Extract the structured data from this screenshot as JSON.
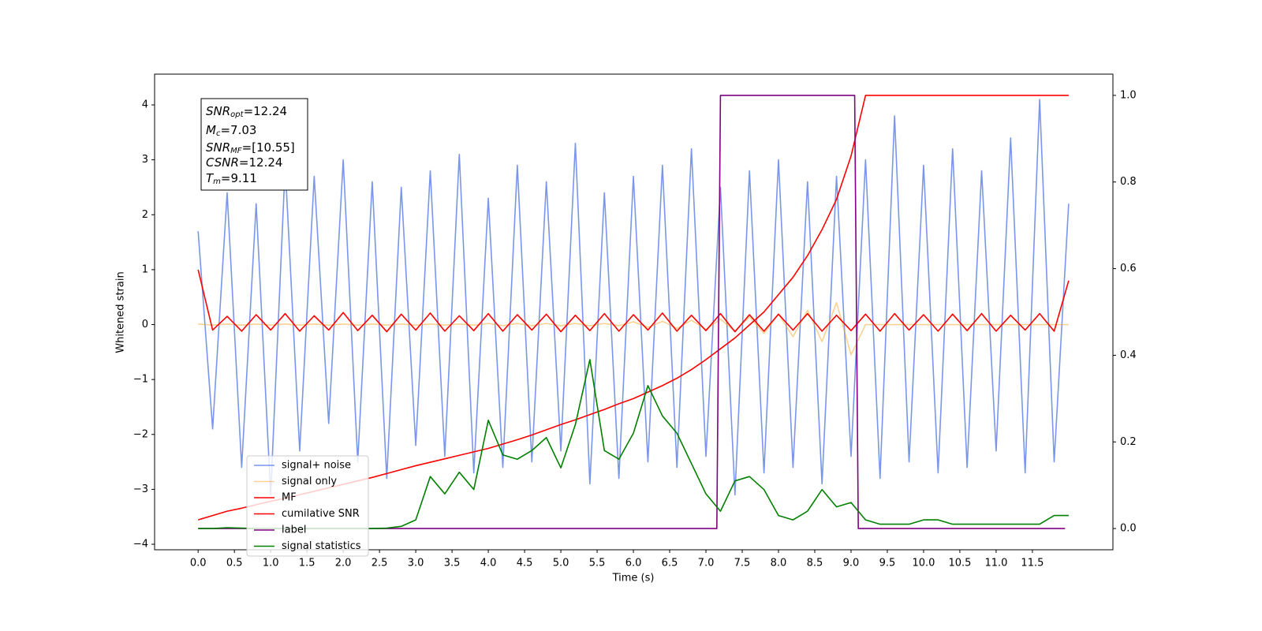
{
  "chart_data": {
    "type": "line",
    "xlabel": "Time (s)",
    "ylabel": "Whitened strain",
    "xlim": [
      -0.6,
      12.61
    ],
    "ylim": [
      -4.1,
      4.56
    ],
    "y2lim": [
      -0.049,
      1.049
    ],
    "xticks": [
      {
        "value": 0,
        "label": "0.0"
      },
      {
        "value": 0.5,
        "label": "0.5"
      },
      {
        "value": 1,
        "label": "1.0"
      },
      {
        "value": 1.5,
        "label": "1.5"
      },
      {
        "value": 2,
        "label": "2.0"
      },
      {
        "value": 2.5,
        "label": "2.5"
      },
      {
        "value": 3,
        "label": "3.0"
      },
      {
        "value": 3.5,
        "label": "3.5"
      },
      {
        "value": 4,
        "label": "4.0"
      },
      {
        "value": 4.5,
        "label": "4.5"
      },
      {
        "value": 5,
        "label": "5.0"
      },
      {
        "value": 5.5,
        "label": "5.5"
      },
      {
        "value": 6,
        "label": "6.0"
      },
      {
        "value": 6.5,
        "label": "6.5"
      },
      {
        "value": 7,
        "label": "7.0"
      },
      {
        "value": 7.5,
        "label": "7.5"
      },
      {
        "value": 8,
        "label": "8.0"
      },
      {
        "value": 8.5,
        "label": "8.5"
      },
      {
        "value": 9,
        "label": "9.0"
      },
      {
        "value": 9.5,
        "label": "9.5"
      },
      {
        "value": 10,
        "label": "10.0"
      },
      {
        "value": 10.5,
        "label": "10.5"
      },
      {
        "value": 11,
        "label": "11.0"
      },
      {
        "value": 11.5,
        "label": "11.5"
      }
    ],
    "yticks": [
      {
        "value": -4,
        "label": "−4"
      },
      {
        "value": -3,
        "label": "−3"
      },
      {
        "value": -2,
        "label": "−2"
      },
      {
        "value": -1,
        "label": "−1"
      },
      0,
      1,
      2,
      3,
      4
    ],
    "y2ticks": [
      {
        "value": 0,
        "label": "0.0"
      },
      {
        "value": 0.2,
        "label": "0.2"
      },
      {
        "value": 0.4,
        "label": "0.4"
      },
      {
        "value": 0.6,
        "label": "0.6"
      },
      {
        "value": 0.8,
        "label": "0.8"
      },
      {
        "value": 1,
        "label": "1.0"
      }
    ],
    "grid": false,
    "legend": "lower left",
    "annotation": [
      {
        "name": "SNR",
        "sub": "opt",
        "rest": "=12.24"
      },
      {
        "name": "M",
        "sub": "c",
        "rest": "=7.03"
      },
      {
        "name": "SNR",
        "sub": "MF",
        "rest": "=[10.55]"
      },
      {
        "name": "CSNR",
        "rest": "=12.24"
      },
      {
        "name": "T",
        "sub": "m",
        "rest": "=9.11"
      }
    ],
    "x": [
      0,
      0.2,
      0.4,
      0.6,
      0.8,
      1,
      1.2,
      1.4,
      1.6,
      1.8,
      2,
      2.2,
      2.4,
      2.6,
      2.8,
      3,
      3.2,
      3.4,
      3.6,
      3.8,
      4,
      4.2,
      4.4,
      4.6,
      4.8,
      5,
      5.2,
      5.4,
      5.6,
      5.8,
      6,
      6.2,
      6.4,
      6.6,
      6.8,
      7,
      7.2,
      7.4,
      7.6,
      7.8,
      8,
      8.2,
      8.4,
      8.6,
      8.8,
      9,
      9.2,
      9.4,
      9.6,
      9.8,
      10,
      10.2,
      10.4,
      10.6,
      10.8,
      11,
      11.2,
      11.4,
      11.6,
      11.8,
      12
    ],
    "series": [
      {
        "name": "signal+ noise",
        "color": "#4169e1",
        "opacity": 0.7,
        "values": [
          1.7,
          -1.9,
          2.4,
          -2.6,
          2.2,
          -3.1,
          2.9,
          -2.3,
          2.7,
          -1.8,
          3.0,
          -2.5,
          2.6,
          -2.8,
          2.5,
          -2.2,
          2.8,
          -2.4,
          3.1,
          -2.7,
          2.3,
          -2.6,
          2.9,
          -2.5,
          2.6,
          -2.3,
          3.3,
          -2.9,
          2.4,
          -2.8,
          2.7,
          -2.5,
          2.9,
          -2.6,
          3.2,
          -2.4,
          2.5,
          -3.1,
          2.8,
          -2.7,
          3.0,
          -2.6,
          2.6,
          -2.9,
          2.7,
          -2.4,
          3.0,
          -2.8,
          3.8,
          -2.5,
          2.9,
          -2.7,
          3.2,
          -2.6,
          2.8,
          -2.3,
          3.4,
          -2.7,
          4.1,
          -2.5,
          2.2
        ]
      },
      {
        "name": "signal only",
        "color": "#f5a623",
        "opacity": 0.5,
        "values": [
          0.01,
          -0.01,
          0.01,
          -0.01,
          0.01,
          -0.01,
          0.01,
          -0.01,
          0.01,
          -0.01,
          0.01,
          -0.01,
          0.01,
          -0.01,
          0.01,
          -0.01,
          0.01,
          -0.01,
          0.01,
          -0.01,
          0.02,
          -0.02,
          0.02,
          -0.02,
          0.02,
          -0.02,
          0.02,
          -0.02,
          0.02,
          -0.02,
          0.05,
          -0.05,
          0.06,
          -0.07,
          0.08,
          -0.09,
          0.1,
          -0.12,
          0.14,
          -0.16,
          0.19,
          -0.22,
          0.26,
          -0.31,
          0.4,
          -0.55,
          0,
          0,
          0,
          0,
          0,
          0,
          0,
          0,
          0,
          0,
          0,
          0,
          0,
          0,
          0
        ]
      },
      {
        "name": "MF",
        "color": "#ff0000",
        "opacity": 1,
        "values": [
          1.0,
          -0.1,
          0.15,
          -0.12,
          0.18,
          -0.1,
          0.2,
          -0.12,
          0.16,
          -0.1,
          0.22,
          -0.11,
          0.17,
          -0.13,
          0.19,
          -0.1,
          0.21,
          -0.12,
          0.16,
          -0.11,
          0.2,
          -0.12,
          0.18,
          -0.1,
          0.19,
          -0.13,
          0.17,
          -0.11,
          0.2,
          -0.12,
          0.18,
          -0.1,
          0.21,
          -0.12,
          0.17,
          -0.11,
          0.2,
          -0.13,
          0.18,
          -0.12,
          0.19,
          -0.1,
          0.2,
          -0.12,
          0.17,
          -0.11,
          0.19,
          -0.12,
          0.2,
          -0.1,
          0.18,
          -0.12,
          0.19,
          -0.11,
          0.2,
          -0.12,
          0.17,
          -0.1,
          0.2,
          -0.12,
          0.8
        ]
      },
      {
        "name": "cumilative SNR",
        "color": "#ff0000",
        "opacity": 1,
        "axis": "y2",
        "values": [
          0.02,
          0.03,
          0.04,
          0.047,
          0.055,
          0.063,
          0.07,
          0.078,
          0.086,
          0.094,
          0.102,
          0.11,
          0.118,
          0.127,
          0.136,
          0.145,
          0.153,
          0.161,
          0.169,
          0.177,
          0.185,
          0.195,
          0.205,
          0.216,
          0.228,
          0.24,
          0.251,
          0.263,
          0.275,
          0.288,
          0.3,
          0.315,
          0.33,
          0.347,
          0.367,
          0.39,
          0.415,
          0.44,
          0.47,
          0.5,
          0.54,
          0.58,
          0.63,
          0.69,
          0.76,
          0.86,
          1,
          1,
          1,
          1,
          1,
          1,
          1,
          1,
          1,
          1,
          1,
          1,
          1,
          1,
          1
        ]
      },
      {
        "name": "label",
        "color": "#800080",
        "opacity": 1,
        "axis": "y2",
        "x": [
          0,
          7.15,
          7.2,
          9.05,
          9.1,
          11.95
        ],
        "values": [
          0,
          0,
          1,
          1,
          0,
          0
        ]
      },
      {
        "name": "signal statistics",
        "color": "#008000",
        "opacity": 1,
        "axis": "y2",
        "values": [
          0,
          0,
          0.002,
          0.001,
          0,
          0,
          0,
          0,
          0,
          0,
          0,
          0,
          0,
          0.001,
          0.005,
          0.02,
          0.12,
          0.08,
          0.13,
          0.09,
          0.25,
          0.17,
          0.16,
          0.18,
          0.21,
          0.14,
          0.24,
          0.39,
          0.18,
          0.16,
          0.22,
          0.33,
          0.26,
          0.22,
          0.15,
          0.08,
          0.04,
          0.11,
          0.12,
          0.09,
          0.03,
          0.02,
          0.04,
          0.09,
          0.05,
          0.06,
          0.02,
          0.01,
          0.01,
          0.01,
          0.02,
          0.02,
          0.01,
          0.01,
          0.01,
          0.01,
          0.01,
          0.01,
          0.01,
          0.03,
          0.03
        ]
      }
    ]
  }
}
